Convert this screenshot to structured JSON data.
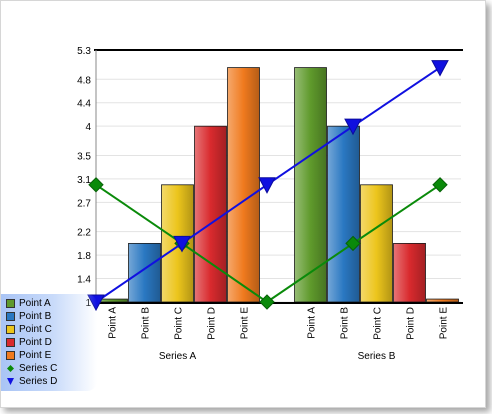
{
  "chart_data": {
    "type": "bar",
    "ylim": [
      1,
      5.3
    ],
    "y_ticks": [
      "5.3",
      "4.8",
      "4.4",
      "4",
      "3.5",
      "3.1",
      "2.7",
      "2.2",
      "1.8",
      "1.4",
      "1"
    ],
    "groups": [
      {
        "label": "Series A",
        "categories": [
          "Point A",
          "Point B",
          "Point C",
          "Point D",
          "Point E"
        ],
        "values": [
          1.05,
          2.0,
          3.0,
          4.0,
          5.0
        ]
      },
      {
        "label": "Series B",
        "categories": [
          "Point A",
          "Point B",
          "Point C",
          "Point D",
          "Point E"
        ],
        "values": [
          5.0,
          4.0,
          3.0,
          2.0,
          1.05
        ]
      }
    ],
    "point_colors": {
      "Point A": "#5f9a2c",
      "Point B": "#2a78c2",
      "Point C": "#ecc51c",
      "Point D": "#d92a2e",
      "Point E": "#f07a1e"
    },
    "line_series": [
      {
        "name": "Series C",
        "color": "#0a8a0a",
        "marker": "diamond",
        "values": [
          3.0,
          2.0,
          1.0,
          2.0,
          3.0
        ]
      },
      {
        "name": "Series D",
        "color": "#1010e0",
        "marker": "triangle-down",
        "values": [
          1.0,
          2.0,
          3.0,
          4.0,
          5.0
        ]
      }
    ],
    "grid": true,
    "legend_position": "bottom-left",
    "legend": [
      {
        "label": "Point A",
        "kind": "swatch",
        "color": "#5f9a2c"
      },
      {
        "label": "Point B",
        "kind": "swatch",
        "color": "#2a78c2"
      },
      {
        "label": "Point C",
        "kind": "swatch",
        "color": "#ecc51c"
      },
      {
        "label": "Point D",
        "kind": "swatch",
        "color": "#d92a2e"
      },
      {
        "label": "Point E",
        "kind": "swatch",
        "color": "#f07a1e"
      },
      {
        "label": "Series C",
        "kind": "diamond",
        "color": "#0a8a0a"
      },
      {
        "label": "Series D",
        "kind": "triangle-down",
        "color": "#1010e0"
      }
    ]
  }
}
